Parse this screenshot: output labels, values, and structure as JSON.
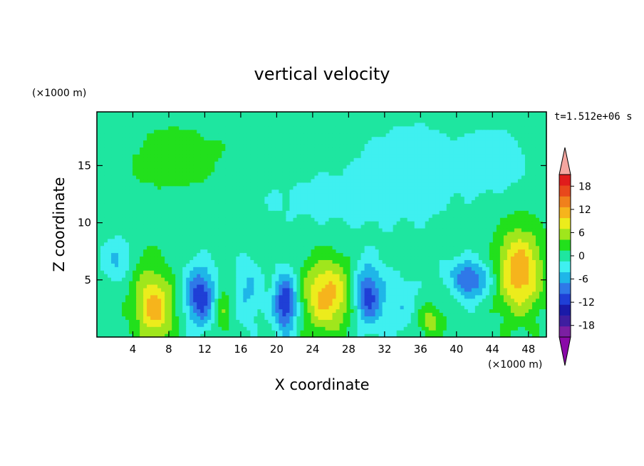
{
  "chart_data": {
    "type": "heatmap",
    "title": "vertical velocity",
    "xlabel": "X coordinate",
    "ylabel": "Z coordinate",
    "x_units": "(×1000 m)",
    "y_units": "(×1000 m)",
    "time_label": "t=1.512e+06 s",
    "xlim": [
      0,
      50
    ],
    "ylim": [
      0,
      19.7
    ],
    "x_ticks": [
      4,
      8,
      12,
      16,
      20,
      24,
      28,
      32,
      36,
      40,
      44,
      48
    ],
    "y_ticks": [
      5,
      10,
      15
    ],
    "colorbar": {
      "levels": [
        -21,
        -18,
        -15,
        -12,
        -9,
        -6,
        -3,
        0,
        3,
        6,
        9,
        12,
        15,
        18,
        21
      ],
      "tick_values": [
        18,
        12,
        6,
        0,
        -6,
        -12,
        -18
      ],
      "colors": [
        "#7b1fa2",
        "#3f1ea0",
        "#1a1aa8",
        "#1f3fd6",
        "#2f78e8",
        "#1fb6e8",
        "#3ff0f0",
        "#1ee6a0",
        "#22e01c",
        "#a0e61c",
        "#ecec1c",
        "#f6b41c",
        "#f0801c",
        "#e8481c",
        "#e01c1c"
      ],
      "over_color": "#f4a6a0",
      "under_color": "#8a0aa8"
    },
    "background_value": 1.5,
    "features": [
      {
        "x": 6.4,
        "z": 2.6,
        "sx": 1.5,
        "sz": 2.0,
        "amp": 12
      },
      {
        "x": 4.2,
        "z": 6.5,
        "sx": 1.8,
        "sz": 1.5,
        "amp": 3
      },
      {
        "x": 11.5,
        "z": 3.6,
        "sx": 1.2,
        "sz": 1.8,
        "amp": -13
      },
      {
        "x": 2.5,
        "z": 6.8,
        "sx": 1.3,
        "sz": 1.3,
        "amp": -7
      },
      {
        "x": 14.0,
        "z": 2.5,
        "sx": 0.8,
        "sz": 1.6,
        "amp": 5
      },
      {
        "x": 16.8,
        "z": 4.0,
        "sx": 1.2,
        "sz": 2.0,
        "amp": -5
      },
      {
        "x": 21.0,
        "z": 3.0,
        "sx": 0.9,
        "sz": 1.8,
        "amp": -14
      },
      {
        "x": 25.6,
        "z": 3.7,
        "sx": 1.9,
        "sz": 2.2,
        "amp": 12
      },
      {
        "x": 30.1,
        "z": 3.7,
        "sx": 1.1,
        "sz": 1.9,
        "amp": -12
      },
      {
        "x": 33.5,
        "z": 3.0,
        "sx": 1.5,
        "sz": 2.0,
        "amp": -4
      },
      {
        "x": 37.2,
        "z": 1.5,
        "sx": 1.0,
        "sz": 1.0,
        "amp": 6
      },
      {
        "x": 39.5,
        "z": 4.5,
        "sx": 0.8,
        "sz": 0.9,
        "amp": 4
      },
      {
        "x": 41.2,
        "z": 5.0,
        "sx": 1.8,
        "sz": 1.2,
        "amp": -11
      },
      {
        "x": 47.0,
        "z": 5.8,
        "sx": 1.8,
        "sz": 2.6,
        "amp": 13
      },
      {
        "x": 9.0,
        "z": 15.5,
        "sx": 5.0,
        "sz": 2.8,
        "amp": 2.5
      },
      {
        "x": 35.0,
        "z": 15.0,
        "sx": 5.0,
        "sz": 3.5,
        "amp": -2.5
      },
      {
        "x": 44.5,
        "z": 15.5,
        "sx": 2.5,
        "sz": 2.0,
        "amp": -3
      },
      {
        "x": 25.0,
        "z": 12.0,
        "sx": 8.0,
        "sz": 2.0,
        "amp": -2.0
      }
    ]
  }
}
